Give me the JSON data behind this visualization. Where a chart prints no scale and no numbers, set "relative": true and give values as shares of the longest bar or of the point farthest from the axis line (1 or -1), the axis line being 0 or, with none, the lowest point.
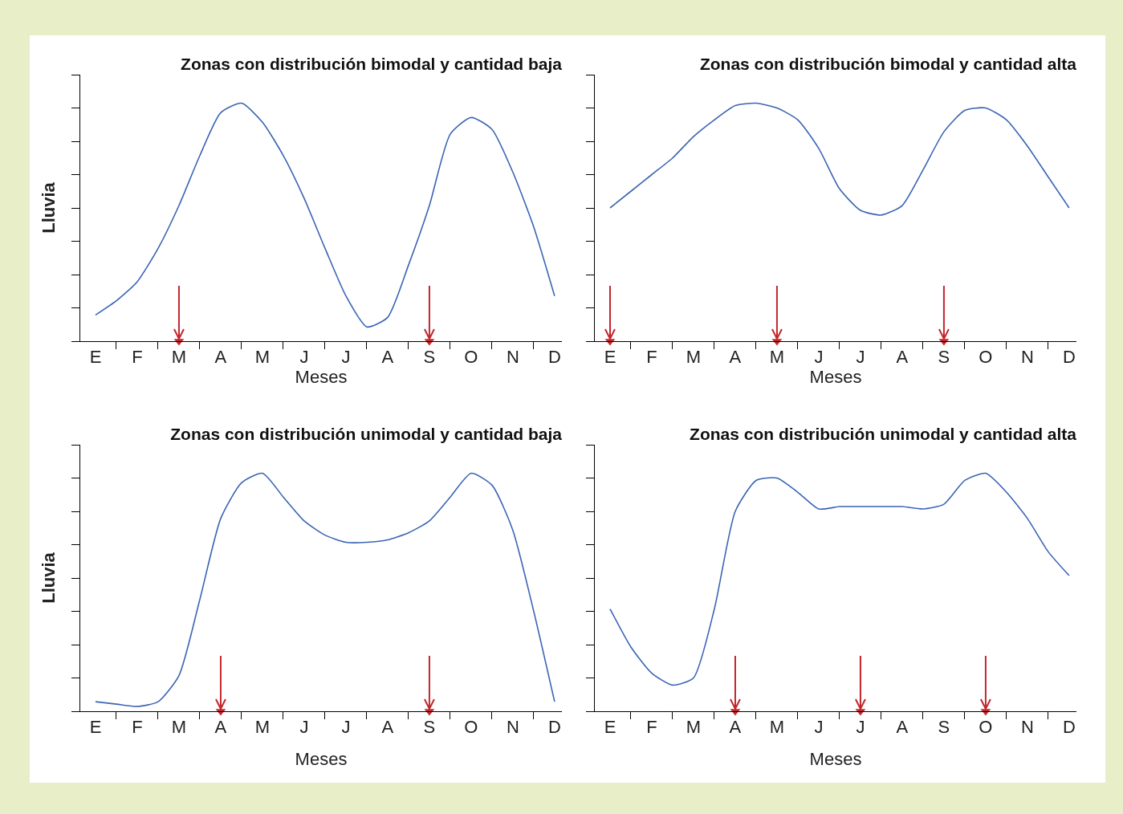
{
  "chart_data": [
    {
      "type": "line",
      "title": "Zonas con distribución bimodal y cantidad baja",
      "xlabel": "Meses",
      "ylabel": "Lluvia",
      "relative": true,
      "tick_labels": "x",
      "categories": [
        "E",
        null,
        "F",
        null,
        "M",
        null,
        "A",
        null,
        "M",
        null,
        "J",
        null,
        "J",
        null,
        "A",
        null,
        "S",
        null,
        "O",
        null,
        "N",
        null,
        "D"
      ],
      "series": [
        {
          "color": "#3a64b4",
          "values": [
            0.11,
            0.17,
            0.25,
            0.39,
            0.57,
            0.78,
            0.96,
            1,
            0.92,
            0.78,
            0.6,
            0.39,
            0.19,
            0.06,
            0.1,
            0.32,
            0.57,
            0.87,
            0.94,
            0.89,
            0.71,
            0.48,
            0.19
          ]
        },
        {
          "type": "scatter",
          "marker": "triangle",
          "color": "#c1272d",
          "values": [
            null,
            null,
            null,
            null,
            0,
            null,
            null,
            null,
            null,
            null,
            null,
            null,
            null,
            null,
            null,
            null,
            0,
            null,
            null,
            null,
            null,
            null,
            null
          ]
        }
      ]
    },
    {
      "type": "line",
      "title": "Zonas con distribución bimodal y cantidad alta",
      "xlabel": "Meses",
      "relative": true,
      "tick_labels": "x",
      "categories": [
        "E",
        null,
        "F",
        null,
        "M",
        null,
        "A",
        null,
        "M",
        null,
        "J",
        null,
        "J",
        null,
        "A",
        null,
        "S",
        null,
        "O",
        null,
        "N",
        null,
        "D"
      ],
      "series": [
        {
          "color": "#3a64b4",
          "values": [
            0.56,
            0.63,
            0.7,
            0.77,
            0.86,
            0.93,
            0.99,
            1,
            0.98,
            0.93,
            0.81,
            0.64,
            0.55,
            0.53,
            0.57,
            0.72,
            0.88,
            0.97,
            0.98,
            0.93,
            0.82,
            0.69,
            0.56
          ]
        },
        {
          "type": "scatter",
          "marker": "triangle",
          "color": "#c1272d",
          "values": [
            0,
            null,
            null,
            null,
            null,
            null,
            null,
            null,
            0,
            null,
            null,
            null,
            null,
            null,
            null,
            null,
            0,
            null,
            null,
            null,
            null,
            null,
            null
          ]
        }
      ]
    },
    {
      "type": "line",
      "title": "Zonas con distribución unimodal y cantidad baja",
      "xlabel": "Meses",
      "ylabel": "Lluvia",
      "relative": true,
      "tick_labels": "x",
      "categories": [
        "E",
        null,
        "F",
        null,
        "M",
        null,
        "A",
        null,
        "M",
        null,
        "J",
        null,
        "J",
        null,
        "A",
        null,
        "S",
        null,
        "O",
        null,
        "N",
        null,
        "D"
      ],
      "series": [
        {
          "color": "#3a64b4",
          "values": [
            0.04,
            0.03,
            0.02,
            0.04,
            0.15,
            0.47,
            0.81,
            0.96,
            1,
            0.9,
            0.8,
            0.74,
            0.71,
            0.71,
            0.72,
            0.75,
            0.8,
            0.9,
            1,
            0.95,
            0.76,
            0.42,
            0.04
          ]
        },
        {
          "type": "scatter",
          "marker": "triangle",
          "color": "#c1272d",
          "values": [
            null,
            null,
            null,
            null,
            null,
            null,
            0,
            null,
            null,
            null,
            null,
            null,
            null,
            null,
            null,
            null,
            0,
            null,
            null,
            null,
            null,
            null,
            null
          ]
        }
      ]
    },
    {
      "type": "line",
      "title": "Zonas con distribución unimodal y cantidad alta",
      "xlabel": "Meses",
      "relative": true,
      "tick_labels": "x",
      "categories": [
        "E",
        null,
        "F",
        null,
        "M",
        null,
        "A",
        null,
        "M",
        null,
        "J",
        null,
        "J",
        null,
        "A",
        null,
        "S",
        null,
        "O",
        null,
        "N",
        null,
        "D"
      ],
      "series": [
        {
          "color": "#3a64b4",
          "values": [
            0.43,
            0.27,
            0.16,
            0.11,
            0.14,
            0.43,
            0.84,
            0.97,
            0.98,
            0.92,
            0.85,
            0.86,
            0.86,
            0.86,
            0.86,
            0.85,
            0.87,
            0.97,
            1,
            0.92,
            0.81,
            0.67,
            0.57
          ]
        },
        {
          "type": "scatter",
          "marker": "triangle",
          "color": "#c1272d",
          "values": [
            null,
            null,
            null,
            null,
            null,
            null,
            0,
            null,
            null,
            null,
            null,
            null,
            0,
            null,
            null,
            null,
            null,
            null,
            0,
            null,
            null,
            null,
            null
          ]
        }
      ]
    }
  ]
}
